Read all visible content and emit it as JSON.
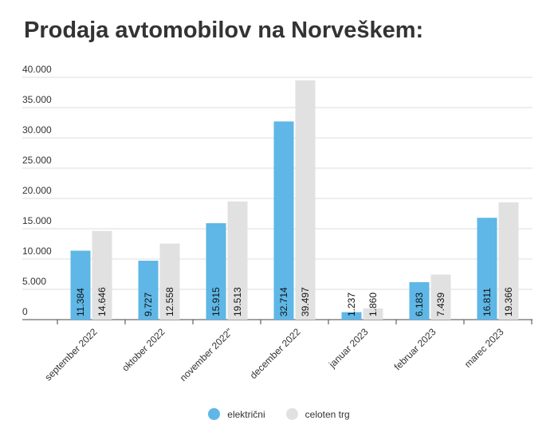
{
  "title": "Prodaja avtomobilov na Norveškem:",
  "colors": {
    "elektricni": "#5eb7e6",
    "celoten_trg": "#e1e1e1",
    "grid": "#dcdcdc",
    "axis": "#444444"
  },
  "chart_data": {
    "type": "bar",
    "categories": [
      "september 2022",
      "oktober 2022",
      "november 2022\"",
      "december 2022",
      "januar 2023",
      "februar 2023",
      "marec 2023"
    ],
    "series": [
      {
        "name": "električni",
        "values": [
          11384,
          9727,
          15915,
          32714,
          1237,
          6183,
          16811
        ],
        "labels": [
          "11.384",
          "9.727",
          "15.915",
          "32.714",
          "1.237",
          "6.183",
          "16.811"
        ]
      },
      {
        "name": "celoten trg",
        "values": [
          14646,
          12558,
          19513,
          39497,
          1860,
          7439,
          19366
        ],
        "labels": [
          "14.646",
          "12.558",
          "19.513",
          "39.497",
          "1.860",
          "7.439",
          "19.366"
        ]
      }
    ],
    "yticks": [
      "0",
      "5.000",
      "10.000",
      "15.000",
      "20.000",
      "25.000",
      "30.000",
      "35.000",
      "40.000"
    ],
    "ylim": [
      0,
      40000
    ],
    "grid": true,
    "legend": "bottom-center"
  }
}
